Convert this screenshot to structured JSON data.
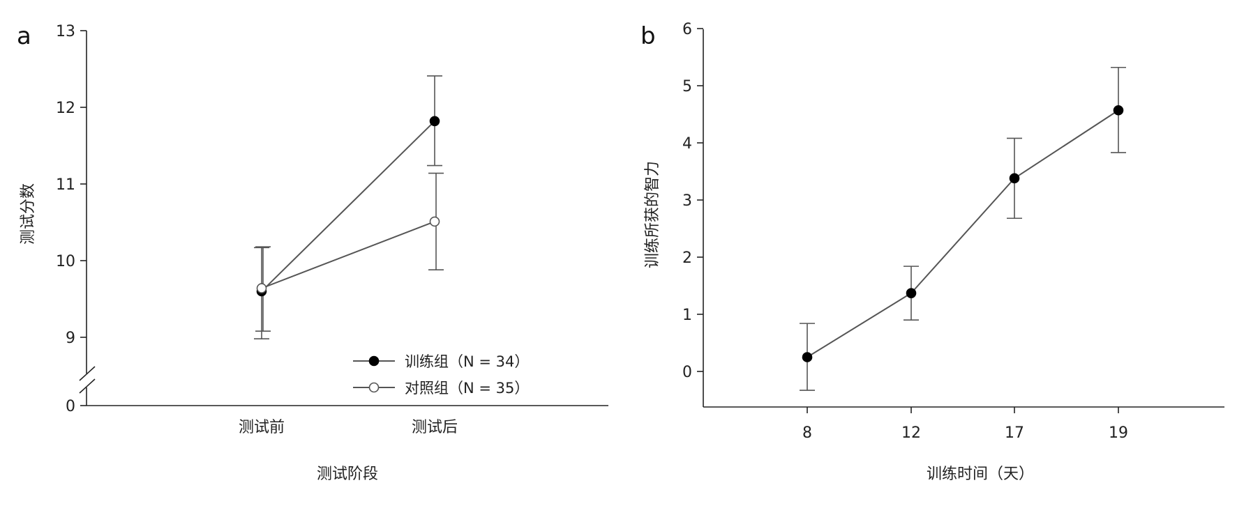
{
  "chart_data": [
    {
      "panel_label": "a",
      "type": "line",
      "xlabel": "测试阶段",
      "ylabel": "测试分数",
      "categories": [
        "测试前",
        "测试后"
      ],
      "ylim": [
        9,
        13
      ],
      "yticks": [
        9,
        10,
        11,
        12,
        13
      ],
      "axis_break": {
        "value": 0,
        "label": "0"
      },
      "legend_position": "bottom-right",
      "series": [
        {
          "name": "训练组（N = 34）",
          "marker": "filled-circle",
          "color": "#000000",
          "values": [
            9.6,
            11.82
          ],
          "err_low": [
            8.98,
            11.24
          ],
          "err_high": [
            10.17,
            12.41
          ]
        },
        {
          "name": "对照组（N = 35）",
          "marker": "open-circle",
          "color": "#ffffff",
          "values": [
            9.64,
            10.51
          ],
          "err_low": [
            9.08,
            9.88
          ],
          "err_high": [
            10.18,
            11.14
          ]
        }
      ]
    },
    {
      "panel_label": "b",
      "type": "line",
      "xlabel": "训练时间（天）",
      "ylabel": "训练所获的智力",
      "categories": [
        "8",
        "12",
        "17",
        "19"
      ],
      "ylim": [
        -0.6,
        6
      ],
      "yticks": [
        0,
        1,
        2,
        3,
        4,
        5,
        6
      ],
      "series": [
        {
          "marker": "filled-circle",
          "color": "#000000",
          "values": [
            0.25,
            1.37,
            3.38,
            4.57
          ],
          "err_low": [
            -0.33,
            0.9,
            2.68,
            3.83
          ],
          "err_high": [
            0.84,
            1.84,
            4.08,
            5.32
          ]
        }
      ]
    }
  ]
}
